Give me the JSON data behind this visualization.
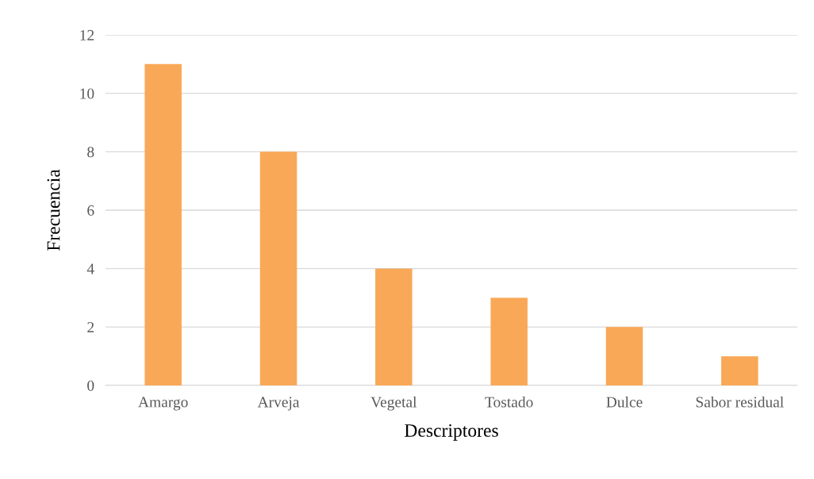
{
  "chart_data": {
    "type": "bar",
    "xlabel": "Descriptores",
    "ylabel": "Frecuencia",
    "categories": [
      "Amargo",
      "Arveja",
      "Vegetal",
      "Tostado",
      "Dulce",
      "Sabor residual"
    ],
    "values": [
      11,
      8,
      4,
      3,
      2,
      1
    ],
    "color": "#f9a857",
    "ylim": [
      0,
      12
    ],
    "yticks": [
      0,
      2,
      4,
      6,
      8,
      10,
      12
    ],
    "grid": "y",
    "legend": false
  }
}
